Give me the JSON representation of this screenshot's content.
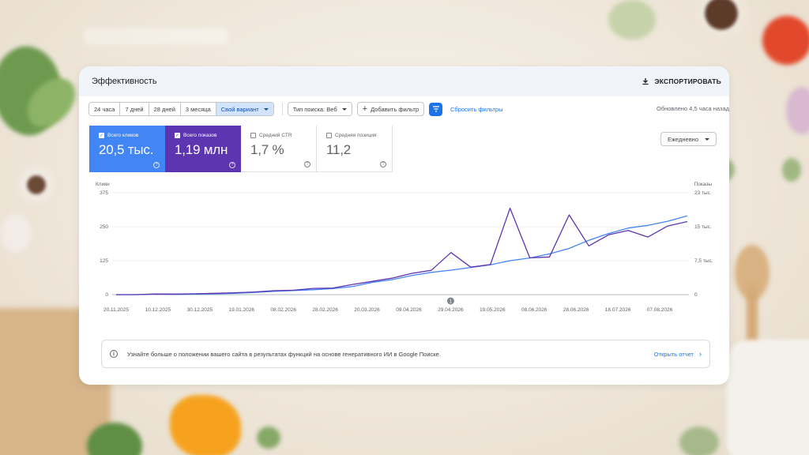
{
  "header": {
    "title": "Эффективность",
    "export_label": "ЭКСПОРТИРОВАТЬ"
  },
  "date_ranges": [
    {
      "label": "24 часа",
      "active": false
    },
    {
      "label": "7 дней",
      "active": false
    },
    {
      "label": "28 дней",
      "active": false
    },
    {
      "label": "3 месяца",
      "active": false
    },
    {
      "label": "Свой вариант",
      "active": true
    }
  ],
  "filters": {
    "search_type": "Тип поиска: Веб",
    "add_filter": "Добавить фильтр",
    "reset": "Сбросить фильтры",
    "updated": "Обновлено 4,5 часа назад"
  },
  "metrics": [
    {
      "label": "Всего кликов",
      "value": "20,5 тыс.",
      "checked": true,
      "color": "#4285f4"
    },
    {
      "label": "Всего показов",
      "value": "1,19 млн",
      "checked": true,
      "color": "#5e35b1"
    },
    {
      "label": "Средний CTR",
      "value": "1,7 %",
      "checked": false
    },
    {
      "label": "Средняя позиция",
      "value": "11,2",
      "checked": false
    }
  ],
  "granularity": "Ежедневно",
  "chart_data": {
    "type": "line",
    "y_left_label": "Клики",
    "y_right_label": "Показы",
    "y_left_ticks": [
      "375",
      "250",
      "125",
      "0"
    ],
    "y_right_ticks": [
      "23 тыс.",
      "15 тыс.",
      "7,5 тыс.",
      "0"
    ],
    "ylim_left": [
      0,
      375
    ],
    "ylim_right": [
      0,
      23000
    ],
    "x_labels": [
      "20.11.2025",
      "10.12.2025",
      "30.12.2025",
      "19.01.2026",
      "08.02.2026",
      "28.02.2026",
      "20.03.2026",
      "09.04.2026",
      "29.04.2026",
      "19.05.2026",
      "08.06.2026",
      "28.06.2026",
      "18.07.2026",
      "07.08.2026"
    ],
    "annotation_marker": "1",
    "annotation_position_index": 8,
    "grid": true,
    "series": [
      {
        "name": "Всего кликов",
        "axis": "left",
        "color": "#4285f4",
        "values": [
          0,
          0,
          2,
          1,
          2,
          3,
          5,
          8,
          12,
          15,
          18,
          22,
          30,
          45,
          55,
          70,
          82,
          90,
          100,
          110,
          125,
          135,
          150,
          170,
          200,
          225,
          245,
          255,
          270,
          290
        ]
      },
      {
        "name": "Всего показов",
        "axis": "right",
        "color": "#5e35b1",
        "values": [
          0,
          0,
          150,
          120,
          200,
          300,
          420,
          600,
          900,
          1000,
          1400,
          1500,
          2300,
          3000,
          3700,
          4800,
          5500,
          9500,
          6200,
          6800,
          19500,
          8300,
          8500,
          18000,
          11000,
          13500,
          14500,
          13000,
          15500,
          16500
        ]
      }
    ]
  },
  "info_banner": {
    "text": "Узнайте больше о положении вашего сайта в результатах функций на основе генеративного ИИ в Google Поиске.",
    "link": "Открыть отчет"
  }
}
